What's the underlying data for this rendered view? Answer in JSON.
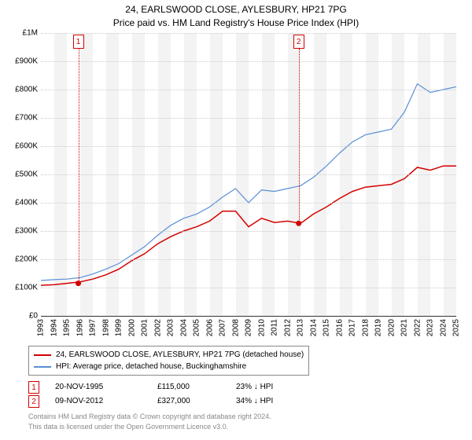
{
  "title_line1": "24, EARLSWOOD CLOSE, AYLESBURY, HP21 7PG",
  "title_line2": "Price paid vs. HM Land Registry's House Price Index (HPI)",
  "chart": {
    "type": "line",
    "background_color": "#ffffff",
    "grid_color": "#cccccc",
    "shade_color": "#f3f3f3",
    "axis_font_size": 10,
    "yaxis": {
      "min": 0,
      "max": 1000000,
      "ticks": [
        0,
        100000,
        200000,
        300000,
        400000,
        500000,
        600000,
        700000,
        800000,
        900000,
        1000000
      ],
      "tick_labels": [
        "£0",
        "£100K",
        "£200K",
        "£300K",
        "£400K",
        "£500K",
        "£600K",
        "£700K",
        "£800K",
        "£900K",
        "£1M"
      ]
    },
    "xaxis": {
      "min": 1993,
      "max": 2025,
      "ticks": [
        1993,
        1994,
        1995,
        1996,
        1997,
        1998,
        1999,
        2000,
        2001,
        2002,
        2003,
        2004,
        2005,
        2006,
        2007,
        2008,
        2009,
        2010,
        2011,
        2012,
        2013,
        2014,
        2015,
        2016,
        2017,
        2018,
        2019,
        2020,
        2021,
        2022,
        2023,
        2024,
        2025
      ]
    },
    "series_price": {
      "color": "#d40000",
      "line_width": 1.5,
      "y_at_year": [
        108000,
        110000,
        115000,
        120000,
        130000,
        145000,
        165000,
        195000,
        220000,
        255000,
        280000,
        300000,
        315000,
        335000,
        370000,
        370000,
        315000,
        345000,
        330000,
        335000,
        327000,
        360000,
        385000,
        415000,
        440000,
        455000,
        460000,
        465000,
        485000,
        525000,
        515000,
        530000,
        530000
      ]
    },
    "series_hpi": {
      "color": "#5a8fd6",
      "line_width": 1.2,
      "y_at_year": [
        125000,
        128000,
        130000,
        135000,
        148000,
        165000,
        185000,
        215000,
        245000,
        285000,
        320000,
        345000,
        360000,
        385000,
        420000,
        450000,
        400000,
        445000,
        440000,
        450000,
        460000,
        490000,
        530000,
        575000,
        615000,
        640000,
        650000,
        660000,
        720000,
        820000,
        790000,
        800000,
        810000
      ]
    },
    "sale_markers": [
      {
        "n": "1",
        "year": 1995.88,
        "price": 115000,
        "box_color": "#d40000"
      },
      {
        "n": "2",
        "year": 2012.86,
        "price": 327000,
        "box_color": "#d40000"
      }
    ],
    "sale_dot_radius": 3.5
  },
  "legend": {
    "items": [
      {
        "color": "#d40000",
        "label": "24, EARLSWOOD CLOSE, AYLESBURY, HP21 7PG (detached house)"
      },
      {
        "color": "#5a8fd6",
        "label": "HPI: Average price, detached house, Buckinghamshire"
      }
    ]
  },
  "sales": [
    {
      "n": "1",
      "date": "20-NOV-1995",
      "price": "£115,000",
      "delta": "23% ↓ HPI",
      "color": "#d40000"
    },
    {
      "n": "2",
      "date": "09-NOV-2012",
      "price": "£327,000",
      "delta": "34% ↓ HPI",
      "color": "#d40000"
    }
  ],
  "footnote_line1": "Contains HM Land Registry data © Crown copyright and database right 2024.",
  "footnote_line2": "This data is licensed under the Open Government Licence v3.0."
}
